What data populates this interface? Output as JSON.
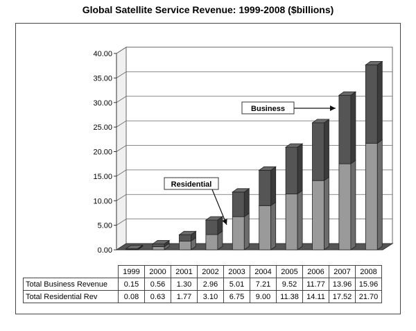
{
  "chart_data": {
    "type": "bar",
    "stacked": true,
    "three_d": true,
    "title": "Global Satellite Service Revenue: 1999-2008 ($billions)",
    "categories": [
      "1999",
      "2000",
      "2001",
      "2002",
      "2003",
      "2004",
      "2005",
      "2006",
      "2007",
      "2008"
    ],
    "series": [
      {
        "name": "Total Business Revenue",
        "color": "#555555",
        "values": [
          0.15,
          0.56,
          1.3,
          2.96,
          5.01,
          7.21,
          9.52,
          11.77,
          13.96,
          15.96
        ]
      },
      {
        "name": "Total Residential Rev",
        "color": "#9a9a9a",
        "values": [
          0.08,
          0.63,
          1.77,
          3.1,
          6.75,
          9.0,
          11.38,
          14.11,
          17.52,
          21.7
        ]
      }
    ],
    "y_ticks": [
      "0.00",
      "5.00",
      "10.00",
      "15.00",
      "20.00",
      "25.00",
      "30.00",
      "35.00",
      "40.00"
    ],
    "ylim": [
      0,
      40
    ],
    "grid": true,
    "annotations": [
      {
        "label": "Business",
        "points_to": "2007"
      },
      {
        "label": "Residential",
        "points_to": "2003"
      }
    ]
  },
  "table": {
    "headers": [
      "1999",
      "2000",
      "2001",
      "2002",
      "2003",
      "2004",
      "2005",
      "2006",
      "2007",
      "2008"
    ],
    "rows": [
      {
        "label": "Total Business Revenue",
        "values": [
          "0.15",
          "0.56",
          "1.30",
          "2.96",
          "5.01",
          "7.21",
          "9.52",
          "11.77",
          "13.96",
          "15.96"
        ]
      },
      {
        "label": "Total Residential Rev",
        "values": [
          "0.08",
          "0.63",
          "1.77",
          "3.10",
          "6.75",
          "9.00",
          "11.38",
          "14.11",
          "17.52",
          "21.70"
        ]
      }
    ]
  }
}
